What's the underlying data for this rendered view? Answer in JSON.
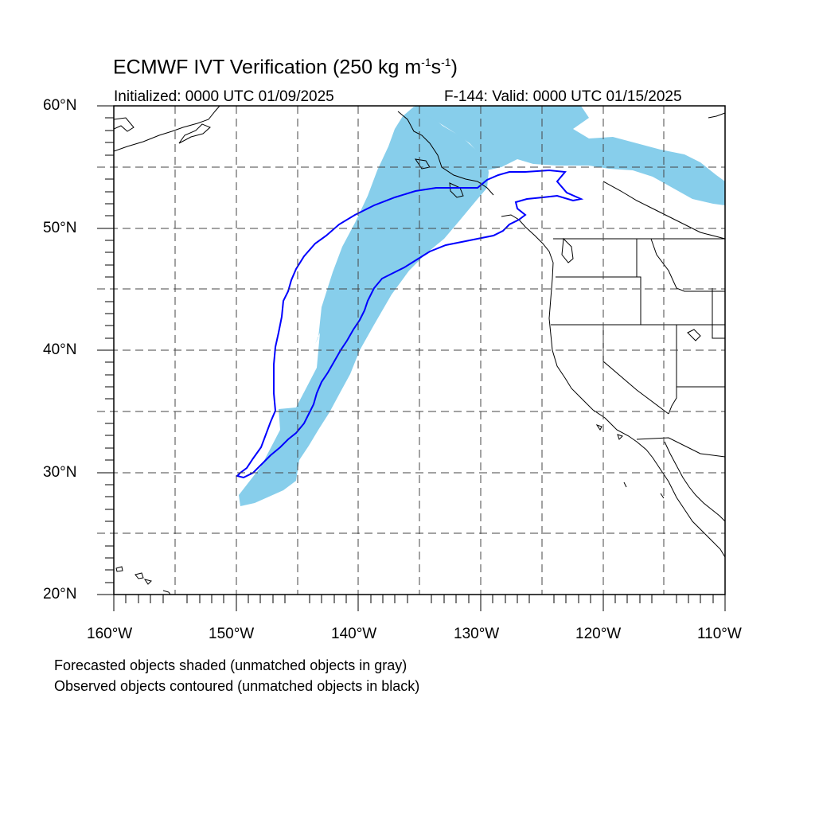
{
  "title": {
    "text": "ECMWF IVT Verification (250 kg m",
    "sup1": "-1",
    "mid": "s",
    "sup2": "-1",
    "end": ")"
  },
  "subtitle": {
    "initialized": "Initialized: 0000 UTC 01/09/2025",
    "valid": "F-144: Valid: 0000 UTC 01/15/2025"
  },
  "lat_labels": [
    "60°N",
    "50°N",
    "40°N",
    "30°N",
    "20°N"
  ],
  "lon_labels": [
    "160°W",
    "150°W",
    "140°W",
    "130°W",
    "120°W",
    "110°W"
  ],
  "notes": [
    "Forecasted objects shaded (unmatched objects in gray)",
    "Observed objects contoured (unmatched objects in black)"
  ],
  "map": {
    "lon_range": [
      -160,
      -110
    ],
    "lat_range": [
      20,
      60
    ],
    "grid_interval_deg": 5,
    "forecast_fill_color": "#87CEEB",
    "observed_contour_color": "#0000FF",
    "coastline_color": "#000000"
  }
}
